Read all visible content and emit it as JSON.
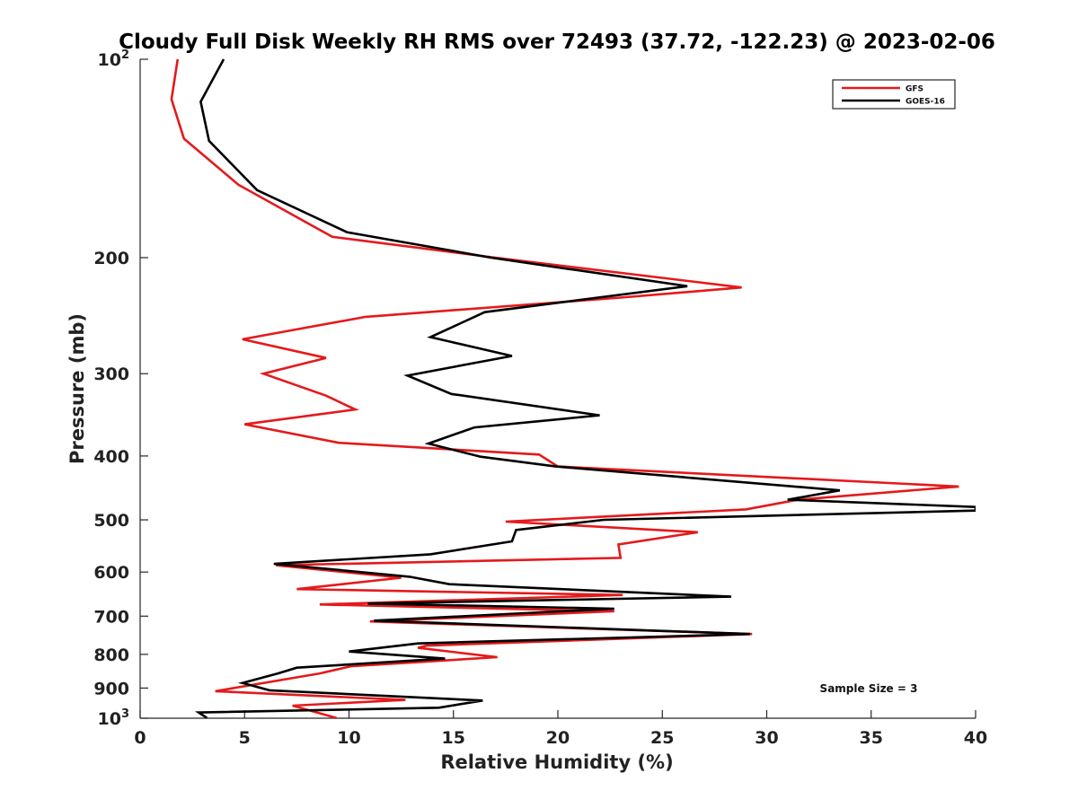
{
  "chart_data": {
    "type": "line",
    "title": "Cloudy Full Disk Weekly RH RMS over 72493 (37.72, -122.23) @ 2023-02-06",
    "xlabel": "Relative Humidity (%)",
    "ylabel": "Pressure (mb)",
    "xlim": [
      0,
      40
    ],
    "ylim": [
      100,
      1000
    ],
    "y_scale": "log",
    "y_reversed": true,
    "grid": false,
    "legend_position": "top-right",
    "x_ticks": [
      "0",
      "5",
      "10",
      "15",
      "20",
      "25",
      "30",
      "35",
      "40"
    ],
    "y_ticks": [
      {
        "value": 100,
        "label": "10",
        "sup": "2"
      },
      {
        "value": 200,
        "label": "200",
        "sup": ""
      },
      {
        "value": 300,
        "label": "300",
        "sup": ""
      },
      {
        "value": 400,
        "label": "400",
        "sup": ""
      },
      {
        "value": 500,
        "label": "500",
        "sup": ""
      },
      {
        "value": 600,
        "label": "600",
        "sup": ""
      },
      {
        "value": 700,
        "label": "700",
        "sup": ""
      },
      {
        "value": 800,
        "label": "800",
        "sup": ""
      },
      {
        "value": 900,
        "label": "900",
        "sup": ""
      },
      {
        "value": 1000,
        "label": "10",
        "sup": "3"
      }
    ],
    "annotation": "Sample Size = 3",
    "series": [
      {
        "name": "GFS",
        "color": "#e41a1c",
        "points": [
          [
            1.8,
            100
          ],
          [
            1.5,
            115
          ],
          [
            2.1,
            132
          ],
          [
            4.7,
            155
          ],
          [
            9.2,
            186
          ],
          [
            17,
            200
          ],
          [
            28.8,
            222
          ],
          [
            23,
            230
          ],
          [
            10.8,
            246
          ],
          [
            4.9,
            266
          ],
          [
            8.9,
            284
          ],
          [
            5.9,
            300
          ],
          [
            8.9,
            324
          ],
          [
            10.3,
            340
          ],
          [
            5.0,
            358
          ],
          [
            9.5,
            382
          ],
          [
            19.1,
            398
          ],
          [
            20.0,
            415
          ],
          [
            39.2,
            445
          ],
          [
            31.5,
            466
          ],
          [
            29.0,
            482
          ],
          [
            17.5,
            503
          ],
          [
            26.7,
            522
          ],
          [
            22.9,
            545
          ],
          [
            23.0,
            571
          ],
          [
            6.5,
            586
          ],
          [
            12.5,
            612
          ],
          [
            7.5,
            637
          ],
          [
            23.1,
            650
          ],
          [
            8.6,
            672
          ],
          [
            22.7,
            688
          ],
          [
            11.0,
            713
          ],
          [
            29.3,
            745
          ],
          [
            13.7,
            776
          ],
          [
            13.3,
            782
          ],
          [
            17.1,
            808
          ],
          [
            10.1,
            834
          ],
          [
            8.6,
            855
          ],
          [
            3.6,
            910
          ],
          [
            12.7,
            938
          ],
          [
            7.3,
            957
          ],
          [
            9.4,
            999
          ]
        ]
      },
      {
        "name": "GOES-16",
        "color": "#000000",
        "points": [
          [
            4.0,
            100
          ],
          [
            2.9,
            116
          ],
          [
            3.3,
            133
          ],
          [
            5.6,
            158
          ],
          [
            9.9,
            183
          ],
          [
            16.8,
            200
          ],
          [
            26.2,
            221
          ],
          [
            16.5,
            242
          ],
          [
            13.9,
            264
          ],
          [
            17.8,
            282
          ],
          [
            12.8,
            302
          ],
          [
            14.9,
            322
          ],
          [
            22.0,
            347
          ],
          [
            16.0,
            362
          ],
          [
            13.8,
            383
          ],
          [
            16.3,
            401
          ],
          [
            19.9,
            415
          ],
          [
            33.5,
            451
          ],
          [
            31.0,
            466
          ],
          [
            40.0,
            478
          ],
          [
            40.0,
            484
          ],
          [
            22.2,
            500
          ],
          [
            18.0,
            518
          ],
          [
            17.8,
            539
          ],
          [
            13.9,
            564
          ],
          [
            6.4,
            583
          ],
          [
            12.9,
            610
          ],
          [
            14.8,
            626
          ],
          [
            28.3,
            654
          ],
          [
            10.9,
            670
          ],
          [
            22.7,
            682
          ],
          [
            11.2,
            711
          ],
          [
            29.2,
            745
          ],
          [
            13.3,
            770
          ],
          [
            10.0,
            792
          ],
          [
            14.6,
            812
          ],
          [
            7.5,
            838
          ],
          [
            6.6,
            855
          ],
          [
            4.9,
            884
          ],
          [
            6.2,
            907
          ],
          [
            16.4,
            940
          ],
          [
            14.3,
            964
          ],
          [
            2.8,
            980
          ],
          [
            3.2,
            999
          ]
        ]
      }
    ]
  }
}
